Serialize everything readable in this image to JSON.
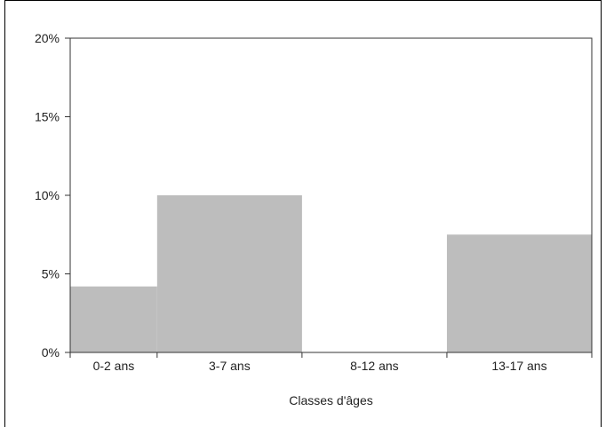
{
  "chart_data": {
    "type": "bar",
    "title": "",
    "xlabel": "Classes d'âges",
    "ylabel": "",
    "categories": [
      "0-2 ans",
      "3-7 ans",
      "8-12 ans",
      "13-17 ans"
    ],
    "bin_edges": [
      0,
      3,
      8,
      13,
      18
    ],
    "values": [
      0.042,
      0.1,
      0.0,
      0.075
    ],
    "ylim": [
      0,
      0.2
    ],
    "y_ticks": [
      {
        "value": 0,
        "label": "0%"
      },
      {
        "value": 0.05,
        "label": "5%"
      },
      {
        "value": 0.1,
        "label": "10%"
      },
      {
        "value": 0.15,
        "label": "15%"
      },
      {
        "value": 0.2,
        "label": "20%"
      }
    ],
    "bar_color": "#bdbdbd",
    "grid": false,
    "legend": "none"
  }
}
